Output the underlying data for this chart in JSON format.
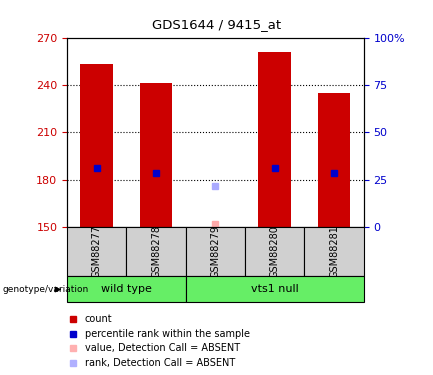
{
  "title": "GDS1644 / 9415_at",
  "samples": [
    "GSM88277",
    "GSM88278",
    "GSM88279",
    "GSM88280",
    "GSM88281"
  ],
  "bar_values": [
    253,
    241,
    null,
    261,
    235
  ],
  "bar_bottom": 150,
  "percentile_rank": [
    187,
    184,
    null,
    187,
    184
  ],
  "absent_value": [
    null,
    null,
    152,
    null,
    null
  ],
  "absent_rank": [
    null,
    null,
    176,
    null,
    null
  ],
  "ylim": [
    150,
    270
  ],
  "yticks_left": [
    150,
    180,
    210,
    240,
    270
  ],
  "yticks_right": [
    0,
    25,
    50,
    75,
    100
  ],
  "right_ylim": [
    0,
    100
  ],
  "bar_color": "#cc0000",
  "bar_width": 0.55,
  "percentile_color": "#0000cc",
  "absent_val_color": "#ffaaaa",
  "absent_rank_color": "#aaaaff",
  "left_tick_color": "#cc0000",
  "right_tick_color": "#0000cc",
  "gridline_ticks": [
    180,
    210,
    240
  ],
  "wt_group_indices": [
    0,
    1
  ],
  "vts_group_indices": [
    2,
    3,
    4
  ],
  "group_color": "#66ee66",
  "sample_box_color": "#d0d0d0",
  "legend_items": [
    {
      "label": "count",
      "color": "#cc0000"
    },
    {
      "label": "percentile rank within the sample",
      "color": "#0000cc"
    },
    {
      "label": "value, Detection Call = ABSENT",
      "color": "#ffb0b0"
    },
    {
      "label": "rank, Detection Call = ABSENT",
      "color": "#b0b0ff"
    }
  ]
}
